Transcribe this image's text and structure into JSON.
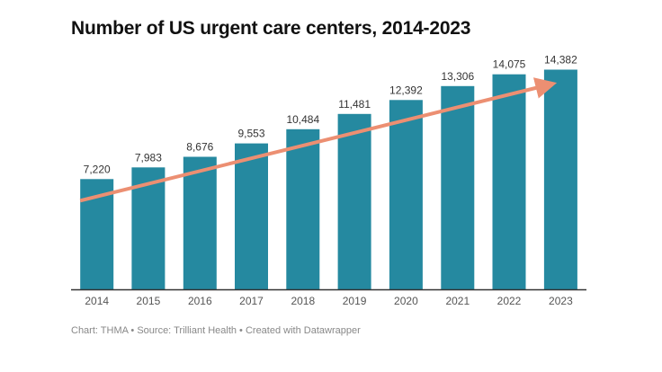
{
  "chart_data": {
    "type": "bar",
    "title": "Number of US urgent care centers, 2014-2023",
    "categories": [
      "2014",
      "2015",
      "2016",
      "2017",
      "2018",
      "2019",
      "2020",
      "2021",
      "2022",
      "2023"
    ],
    "values": [
      7220,
      7983,
      8676,
      9553,
      10484,
      11481,
      12392,
      13306,
      14075,
      14382
    ],
    "value_labels": [
      "7,220",
      "7,983",
      "8,676",
      "9,553",
      "10,484",
      "11,481",
      "12,392",
      "13,306",
      "14,075",
      "14,382"
    ],
    "xlabel": "",
    "ylabel": "",
    "ylim": [
      0,
      15000
    ],
    "grid": false,
    "trend_arrow": true,
    "colors": {
      "bar": "#2589a0",
      "trend": "#ec8f72",
      "axis": "#333333"
    }
  },
  "footer": "Chart: THMA • Source: Trilliant Health • Created with Datawrapper"
}
